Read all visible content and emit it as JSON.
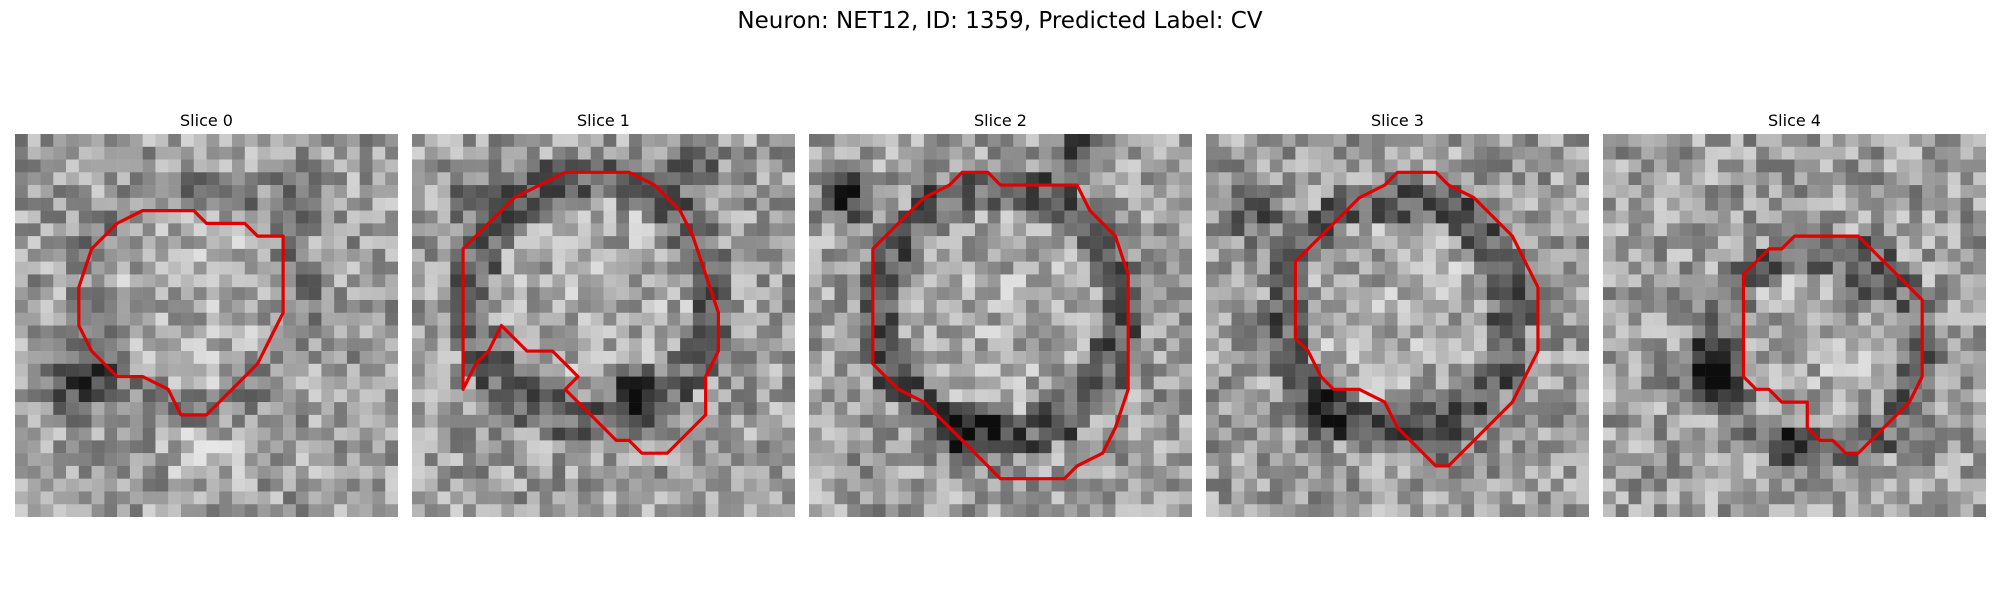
{
  "figure": {
    "title": "Neuron: NET12, ID: 1359, Predicted Label: CV",
    "outline_color": "#e00000",
    "image_type": "grayscale microscopy slices",
    "panels": [
      {
        "title": "Slice 0"
      },
      {
        "title": "Slice 1"
      },
      {
        "title": "Slice 2"
      },
      {
        "title": "Slice 3"
      },
      {
        "title": "Slice 4"
      }
    ]
  }
}
